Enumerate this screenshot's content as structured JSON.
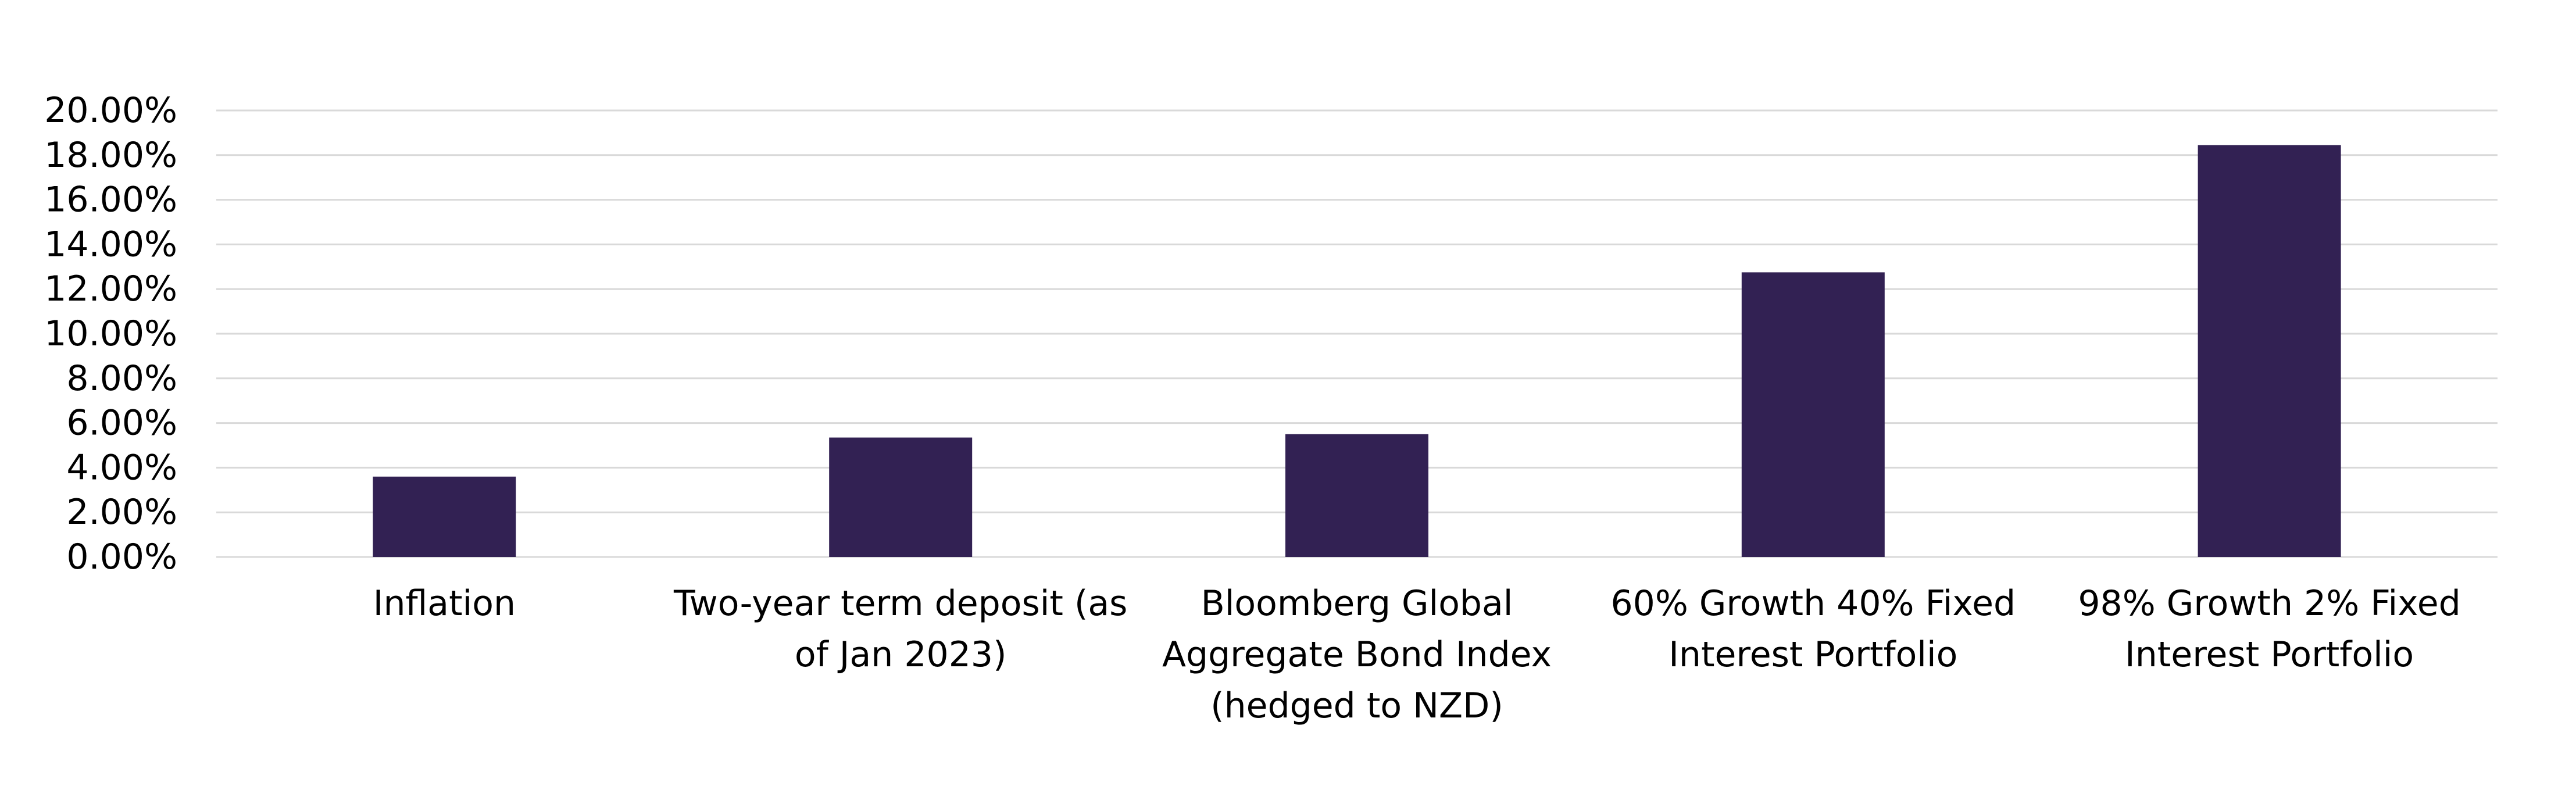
{
  "chart_data": {
    "type": "bar",
    "title": "",
    "xlabel": "",
    "ylabel": "",
    "ylim": [
      0,
      20
    ],
    "y_tick_step": 2,
    "y_tick_format": "percent_2dp",
    "y_ticks": [
      "0.00%",
      "2.00%",
      "4.00%",
      "6.00%",
      "8.00%",
      "10.00%",
      "12.00%",
      "14.00%",
      "16.00%",
      "18.00%",
      "20.00%"
    ],
    "grid": true,
    "legend": "none",
    "bar_color": "#322153",
    "categories": [
      [
        "Inflation"
      ],
      [
        "Two-year term deposit (as",
        "of Jan 2023)"
      ],
      [
        "Bloomberg Global",
        "Aggregate Bond Index",
        "(hedged to NZD)"
      ],
      [
        "60% Growth 40% Fixed",
        "Interest Portfolio"
      ],
      [
        "98% Growth 2% Fixed",
        "Interest Portfolio"
      ]
    ],
    "values": [
      3.6,
      5.35,
      5.5,
      12.75,
      18.45
    ]
  }
}
